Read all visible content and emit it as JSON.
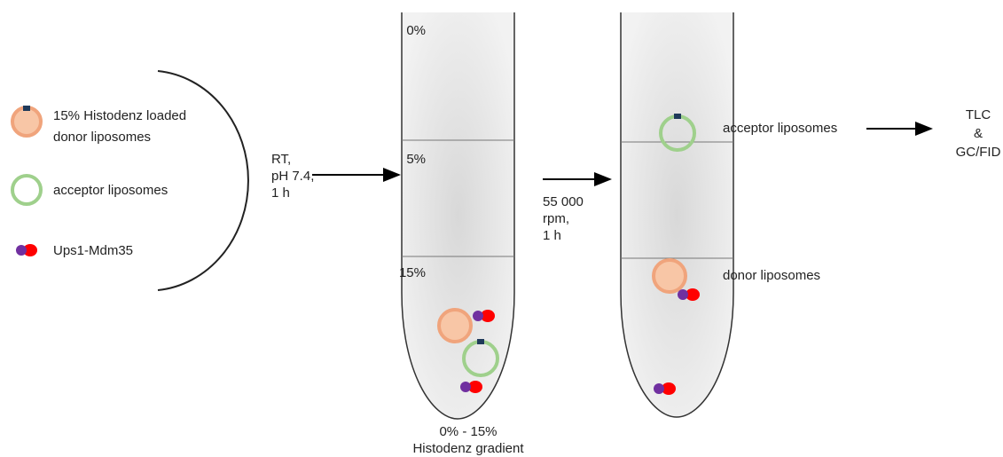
{
  "legend": {
    "donor": [
      "15% Histodenz loaded",
      "donor liposomes"
    ],
    "acceptor": "acceptor liposomes",
    "protein": "Ups1-Mdm35"
  },
  "step1": {
    "conditions": [
      "RT,",
      "pH 7.4,",
      "1 h"
    ]
  },
  "tube1": {
    "levels": [
      "0%",
      "5%",
      "15%"
    ],
    "caption": [
      "0% - 15%",
      "Histodenz gradient"
    ]
  },
  "step2": {
    "conditions": [
      "55 000",
      "rpm,",
      "1 h"
    ]
  },
  "tube2": {
    "labels": [
      "acceptor liposomes",
      "donor liposomes"
    ]
  },
  "analysis": [
    "TLC",
    "&",
    "GC/FID"
  ]
}
